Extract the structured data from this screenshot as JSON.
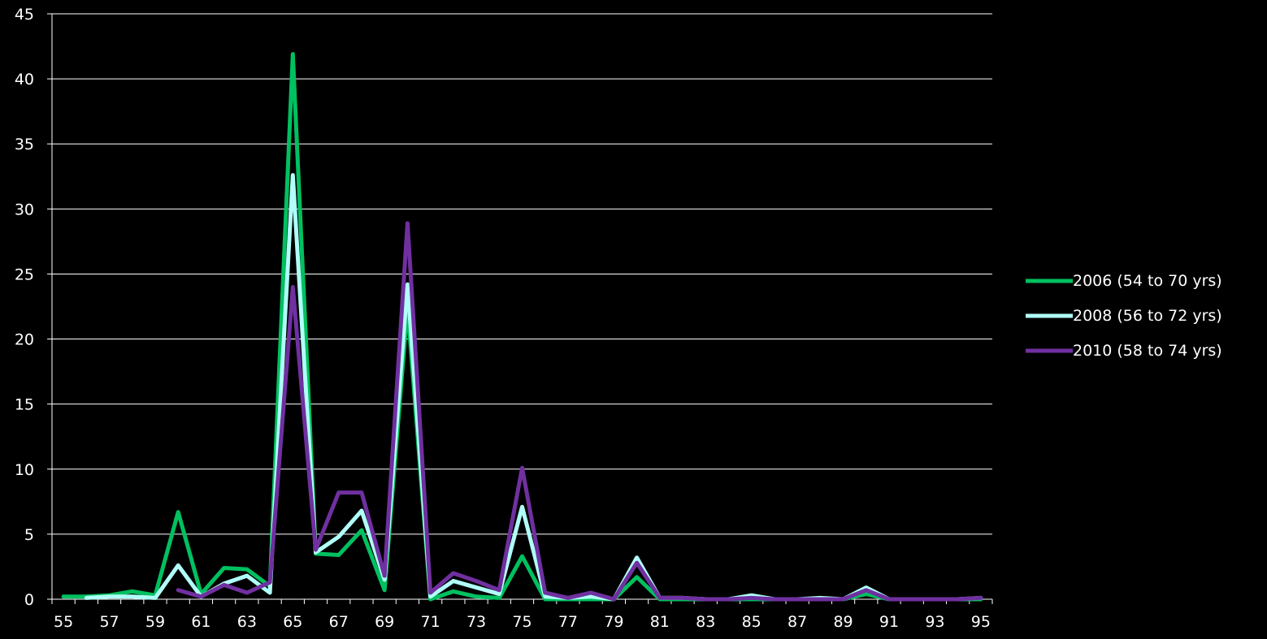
{
  "chart_data": {
    "type": "line",
    "x": [
      55,
      56,
      57,
      58,
      59,
      60,
      61,
      62,
      63,
      64,
      65,
      66,
      67,
      68,
      69,
      70,
      71,
      72,
      73,
      74,
      75,
      76,
      77,
      78,
      79,
      80,
      81,
      82,
      83,
      84,
      85,
      86,
      87,
      88,
      89,
      90,
      91,
      92,
      93,
      94,
      95
    ],
    "x_tick_labels": [
      "55",
      "57",
      "59",
      "61",
      "63",
      "65",
      "67",
      "69",
      "71",
      "73",
      "75",
      "77",
      "79",
      "81",
      "83",
      "85",
      "87",
      "89",
      "91",
      "93",
      "95"
    ],
    "y_tick_labels": [
      "0",
      "5",
      "10",
      "15",
      "20",
      "25",
      "30",
      "35",
      "40",
      "45"
    ],
    "ylim": [
      0,
      45
    ],
    "grid": true,
    "legend_position": "right",
    "series": [
      {
        "name": "2006 (54 to 70 yrs)",
        "color": "#00c060",
        "values": [
          0.2,
          0.2,
          0.3,
          0.6,
          0.3,
          6.7,
          0.4,
          2.4,
          2.3,
          1.0,
          41.9,
          3.5,
          3.4,
          5.3,
          0.7,
          22.5,
          0.0,
          0.6,
          0.2,
          0.1,
          3.3,
          0.0,
          0.0,
          0.0,
          0.0,
          1.7,
          0.0,
          0.0,
          0.0,
          0.0,
          0.0,
          0.0,
          0.0,
          0.0,
          0.0,
          0.4,
          0.0,
          0.0,
          0.0,
          0.0,
          0.0
        ]
      },
      {
        "name": "2008 (56 to 72 yrs)",
        "color": "#b0fff8",
        "values": [
          null,
          0.1,
          0.2,
          0.2,
          0.1,
          2.6,
          0.2,
          1.2,
          1.8,
          0.5,
          32.6,
          3.6,
          4.8,
          6.8,
          1.5,
          24.2,
          0.2,
          1.4,
          0.9,
          0.4,
          7.1,
          0.2,
          0.1,
          0.2,
          0.0,
          3.2,
          0.1,
          0.1,
          0.0,
          0.0,
          0.3,
          0.0,
          0.0,
          0.1,
          0.0,
          0.9,
          0.0,
          0.0,
          0.0,
          0.0,
          0.1
        ]
      },
      {
        "name": "2010 (58 to 74 yrs)",
        "color": "#7030a0",
        "values": [
          null,
          null,
          null,
          null,
          null,
          0.7,
          0.2,
          1.1,
          0.5,
          1.3,
          24.0,
          3.8,
          8.2,
          8.2,
          1.8,
          28.9,
          0.5,
          2.0,
          1.4,
          0.7,
          10.1,
          0.5,
          0.1,
          0.5,
          0.0,
          2.8,
          0.1,
          0.1,
          0.0,
          0.0,
          0.1,
          0.0,
          0.0,
          0.0,
          0.0,
          0.7,
          0.0,
          0.0,
          0.0,
          0.0,
          0.1
        ]
      }
    ]
  }
}
